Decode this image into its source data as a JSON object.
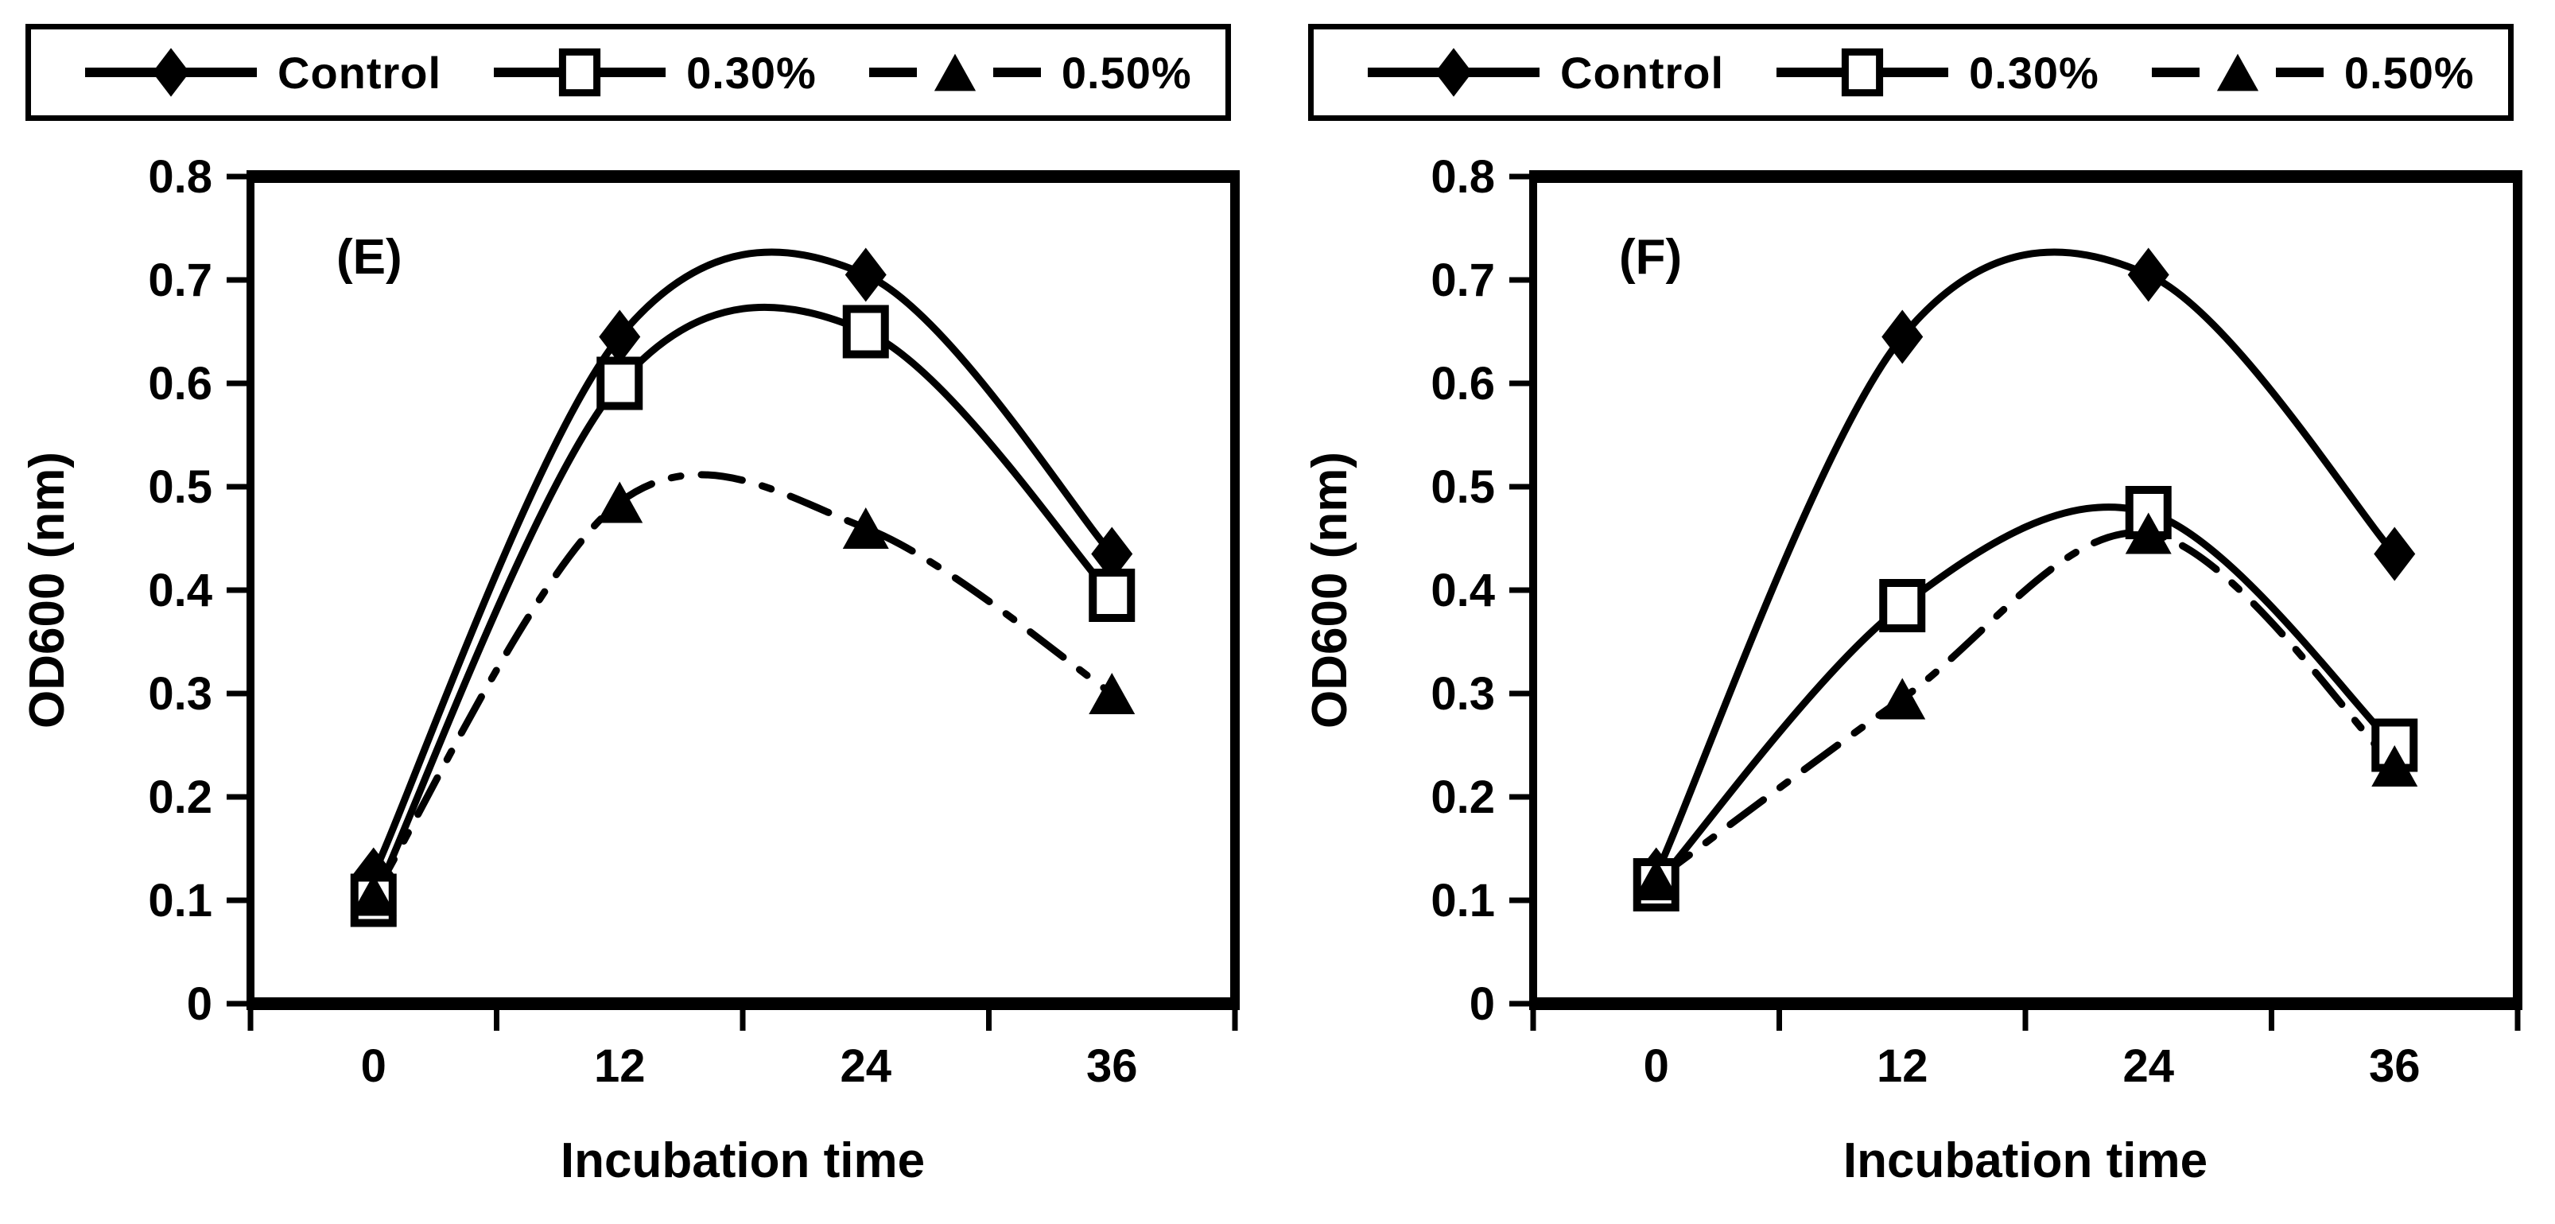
{
  "colors": {
    "ink": "#000000",
    "background": "#ffffff"
  },
  "chart_data": [
    {
      "type": "line",
      "panel_label": "(E)",
      "xlabel": "Incubation time",
      "ylabel": "OD600 (nm)",
      "categories": [
        "0",
        "12",
        "24",
        "36"
      ],
      "ylim": [
        0,
        0.8
      ],
      "ytick_labels": [
        "0",
        "0.1",
        "0.2",
        "0.3",
        "0.4",
        "0.5",
        "0.6",
        "0.7",
        "0.8"
      ],
      "grid": false,
      "legend_position": "top",
      "line_smoothing": "smooth",
      "series": [
        {
          "name": "Control",
          "marker": "diamond",
          "marker_fill": "filled",
          "line_style": "solid",
          "values": [
            0.125,
            0.645,
            0.705,
            0.435
          ]
        },
        {
          "name": "0.30%",
          "marker": "square",
          "marker_fill": "open",
          "line_style": "solid",
          "values": [
            0.1,
            0.6,
            0.65,
            0.395
          ]
        },
        {
          "name": "0.50%",
          "marker": "triangle",
          "marker_fill": "filled",
          "line_style": "dash-dot",
          "values": [
            0.105,
            0.485,
            0.46,
            0.3
          ]
        }
      ]
    },
    {
      "type": "line",
      "panel_label": "(F)",
      "xlabel": "Incubation time",
      "ylabel": "OD600 (nm)",
      "categories": [
        "0",
        "12",
        "24",
        "36"
      ],
      "ylim": [
        0,
        0.8
      ],
      "ytick_labels": [
        "0",
        "0.1",
        "0.2",
        "0.3",
        "0.4",
        "0.5",
        "0.6",
        "0.7",
        "0.8"
      ],
      "grid": false,
      "legend_position": "top",
      "line_smoothing": "smooth",
      "series": [
        {
          "name": "Control",
          "marker": "diamond",
          "marker_fill": "filled",
          "line_style": "solid",
          "values": [
            0.125,
            0.645,
            0.705,
            0.435
          ]
        },
        {
          "name": "0.30%",
          "marker": "square",
          "marker_fill": "open",
          "line_style": "solid",
          "values": [
            0.115,
            0.385,
            0.475,
            0.25
          ]
        },
        {
          "name": "0.50%",
          "marker": "triangle",
          "marker_fill": "filled",
          "line_style": "dash-dot",
          "values": [
            0.12,
            0.295,
            0.455,
            0.23
          ]
        }
      ]
    }
  ]
}
